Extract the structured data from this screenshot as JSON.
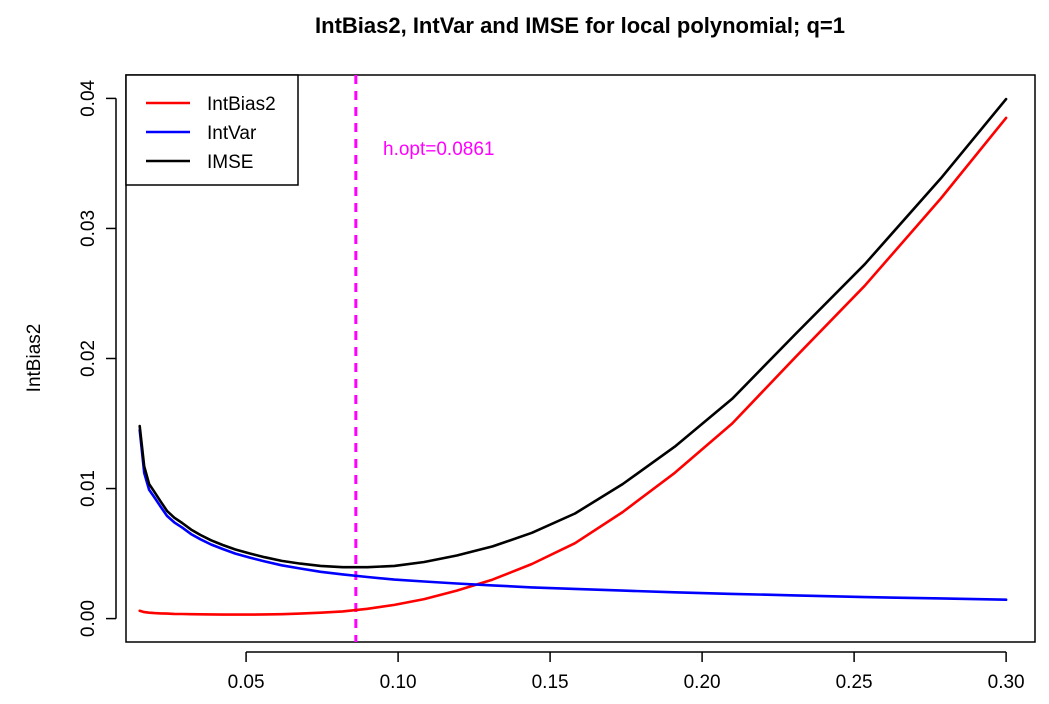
{
  "chart_data": {
    "type": "line",
    "title": "IntBias2, IntVar and IMSE for local polynomial; q=1",
    "xlabel": "",
    "ylabel": "IntBias2",
    "xlim": [
      0.0105,
      0.3095
    ],
    "ylim": [
      -0.0018,
      0.0418
    ],
    "x_ticks": [
      0.05,
      0.1,
      0.15,
      0.2,
      0.25,
      0.3
    ],
    "x_tick_labels": [
      "0.05",
      "0.10",
      "0.15",
      "0.20",
      "0.25",
      "0.30"
    ],
    "y_ticks": [
      0.0,
      0.01,
      0.02,
      0.03,
      0.04
    ],
    "y_tick_labels": [
      "0.00",
      "0.01",
      "0.02",
      "0.03",
      "0.04"
    ],
    "grid": false,
    "legend_position": "top-left",
    "x": [
      0.015,
      0.0165,
      0.0181,
      0.0199,
      0.0219,
      0.024,
      0.0264,
      0.029,
      0.0319,
      0.035,
      0.0385,
      0.0423,
      0.0465,
      0.0511,
      0.0561,
      0.0617,
      0.0678,
      0.0745,
      0.0818,
      0.0899,
      0.0988,
      0.1086,
      0.1193,
      0.1311,
      0.144,
      0.1582,
      0.1739,
      0.191,
      0.2099,
      0.2307,
      0.2535,
      0.2785,
      0.3
    ],
    "series": [
      {
        "name": "IntBias2",
        "color": "#ff0000",
        "values": [
          0.0006,
          0.0005,
          0.00045,
          0.00042,
          0.0004,
          0.00038,
          0.00036,
          0.00035,
          0.00034,
          0.00033,
          0.00032,
          0.00031,
          0.00031,
          0.00031,
          0.00032,
          0.00034,
          0.00038,
          0.00045,
          0.00055,
          0.00075,
          0.00105,
          0.0015,
          0.00215,
          0.003,
          0.0042,
          0.0058,
          0.0082,
          0.0112,
          0.015,
          0.0201,
          0.0256,
          0.0323,
          0.0385
        ]
      },
      {
        "name": "IntVar",
        "color": "#0000ff",
        "values": [
          0.0145,
          0.0112,
          0.0099,
          0.0093,
          0.0086,
          0.0079,
          0.0074,
          0.007,
          0.0065,
          0.0061,
          0.0057,
          0.00535,
          0.005,
          0.0047,
          0.0044,
          0.0041,
          0.00385,
          0.0036,
          0.0034,
          0.0032,
          0.003,
          0.00285,
          0.0027,
          0.00255,
          0.0024,
          0.00228,
          0.00215,
          0.00202,
          0.0019,
          0.00178,
          0.00165,
          0.00155,
          0.00145
        ]
      },
      {
        "name": "IMSE",
        "color": "#000000",
        "values": [
          0.0148,
          0.0117,
          0.01035,
          0.00972,
          0.009,
          0.00828,
          0.00776,
          0.00735,
          0.00684,
          0.00643,
          0.00602,
          0.00566,
          0.00531,
          0.00501,
          0.00472,
          0.00444,
          0.00423,
          0.00405,
          0.00395,
          0.00395,
          0.00405,
          0.00435,
          0.00485,
          0.00555,
          0.0066,
          0.00808,
          0.01035,
          0.01322,
          0.0169,
          0.02188,
          0.02725,
          0.03385,
          0.03995
        ]
      }
    ],
    "vline": {
      "x": 0.0861,
      "color": "#ff00ff",
      "style": "dashed"
    },
    "annotation": {
      "text": "h.opt=0.0861",
      "color": "#ff00ff"
    }
  }
}
